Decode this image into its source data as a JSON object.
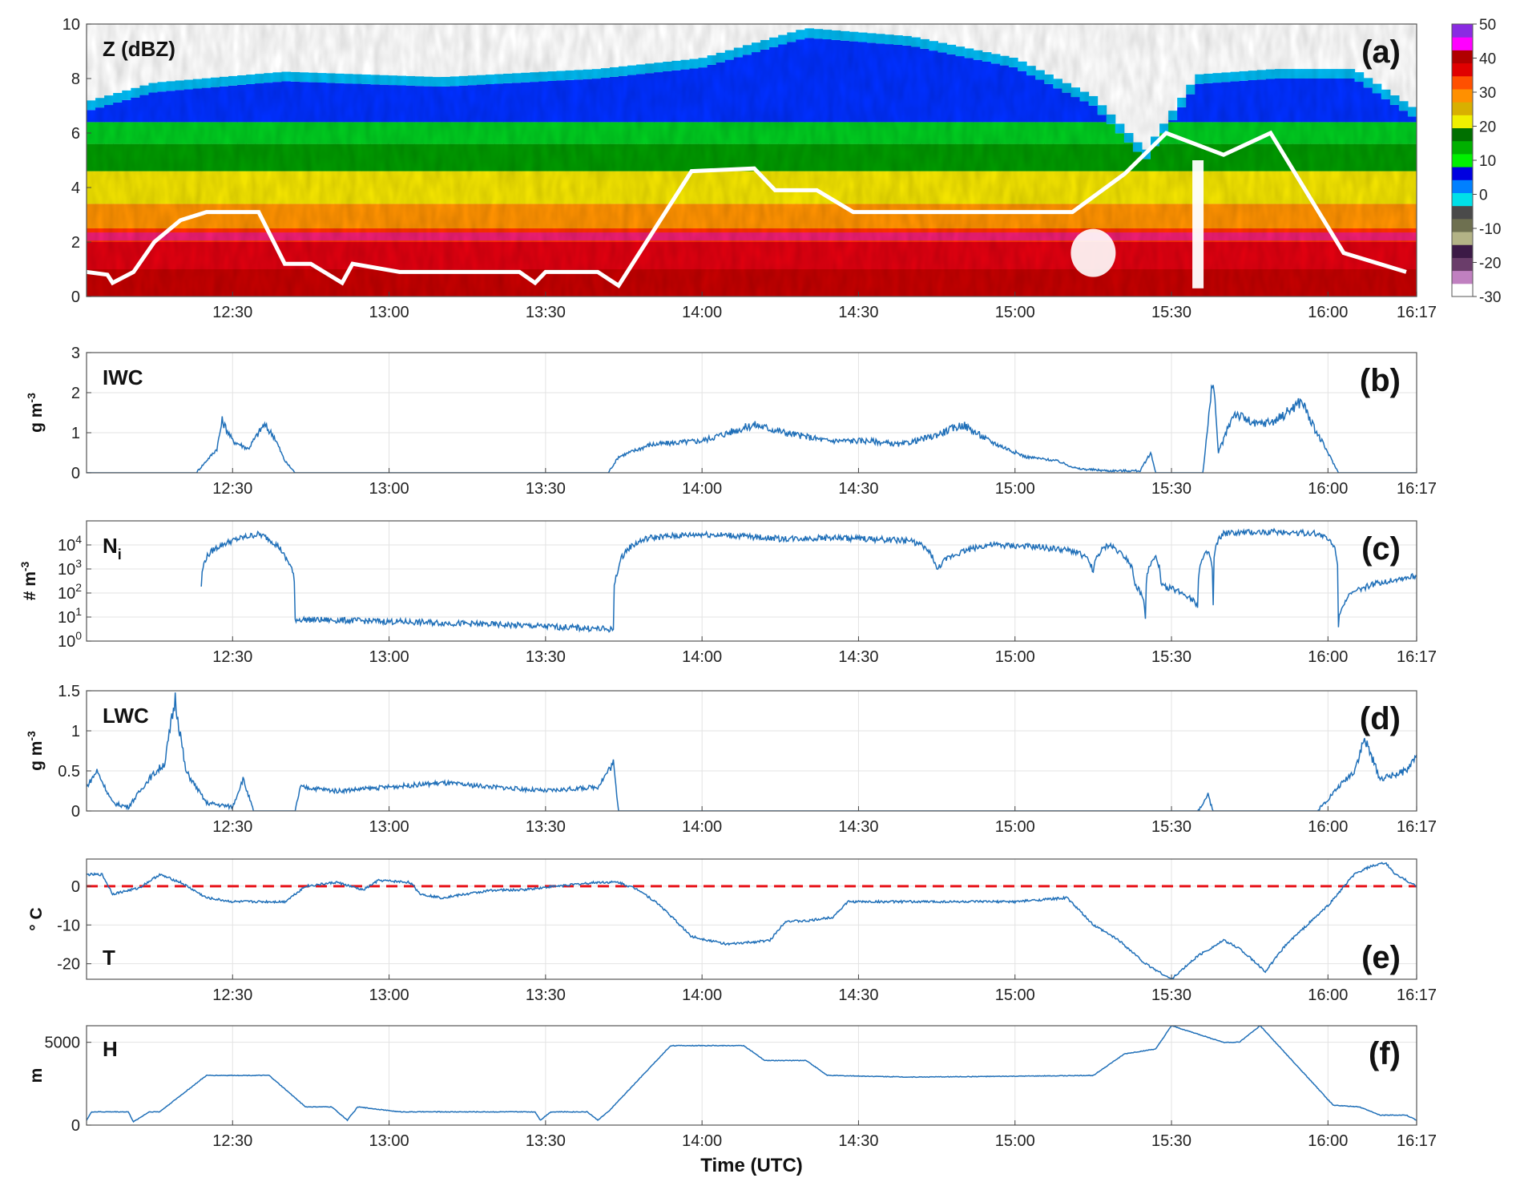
{
  "xaxis": {
    "title": "Time (UTC)",
    "start_min": 722,
    "end_min": 977,
    "tick_minutes": [
      750,
      780,
      810,
      840,
      870,
      900,
      930,
      960,
      977
    ],
    "tick_labels": [
      "12:30",
      "13:00",
      "13:30",
      "14:00",
      "14:30",
      "15:00",
      "15:30",
      "16:00",
      "16:17"
    ]
  },
  "panels": [
    {
      "id": "a",
      "letter": "(a)",
      "label": "Z (dBZ)",
      "ylabel": "",
      "type": "heatmap",
      "ylim": [
        0,
        10
      ],
      "ytick_values": [
        0,
        2,
        4,
        6,
        8,
        10
      ],
      "ytick_labels": [
        "0",
        "2",
        "4",
        "6",
        "8",
        "10"
      ],
      "colorbar": {
        "tick_values": [
          50,
          40,
          30,
          20,
          10,
          0,
          -10,
          -20,
          -30
        ],
        "tick_labels": [
          "50",
          "40",
          "30",
          "20",
          "10",
          "0",
          "-10",
          "-20",
          "-30"
        ],
        "colors": [
          "#ffffff",
          "#c080c0",
          "#6a3d6a",
          "#3c1a46",
          "#b3b386",
          "#6e7050",
          "#4a4a4a",
          "#00e0e8",
          "#0080ff",
          "#0000e0",
          "#00f000",
          "#00b000",
          "#007000",
          "#f0f000",
          "#d8b000",
          "#ff9000",
          "#ff5000",
          "#e00000",
          "#b00000",
          "#ff00ff",
          "#8a2be2"
        ]
      }
    },
    {
      "id": "b",
      "letter": "(b)",
      "label": "IWC",
      "ylabel": "g m-3",
      "type": "line",
      "ylim": [
        0,
        3
      ],
      "ytick_values": [
        0,
        1,
        2,
        3
      ],
      "ytick_labels": [
        "0",
        "1",
        "2",
        "3"
      ]
    },
    {
      "id": "c",
      "letter": "(c)",
      "label": "Ni",
      "ylabel": "# m-3",
      "type": "line",
      "scale": "log",
      "ylim": [
        1,
        100000
      ],
      "ytick_values": [
        1,
        10,
        100,
        1000,
        10000
      ],
      "ytick_labels": [
        "10^0",
        "10^1",
        "10^2",
        "10^3",
        "10^4"
      ]
    },
    {
      "id": "d",
      "letter": "(d)",
      "label": "LWC",
      "ylabel": "g m-3",
      "type": "line",
      "ylim": [
        0,
        1.5
      ],
      "ytick_values": [
        0,
        0.5,
        1,
        1.5
      ],
      "ytick_labels": [
        "0",
        "0.5",
        "1",
        "1.5"
      ]
    },
    {
      "id": "e",
      "letter": "(e)",
      "label": "T",
      "ylabel": "° C",
      "type": "line",
      "ylim": [
        -24,
        7
      ],
      "ytick_values": [
        -20,
        -10,
        0
      ],
      "ytick_labels": [
        "-20",
        "-10",
        "0"
      ],
      "reference_line": 0
    },
    {
      "id": "f",
      "letter": "(f)",
      "label": "H",
      "ylabel": "m",
      "type": "line",
      "ylim": [
        0,
        6000
      ],
      "ytick_values": [
        0,
        5000
      ],
      "ytick_labels": [
        "0",
        "5000"
      ]
    }
  ],
  "chart_data": [
    {
      "type": "heatmap",
      "panel": "a",
      "title": "Z (dBZ)",
      "x_unit": "minutes of day (UTC)",
      "y_unit": "km",
      "flight_altitude_km": [
        [
          722,
          0.9
        ],
        [
          726,
          0.8
        ],
        [
          727,
          0.5
        ],
        [
          731,
          0.9
        ],
        [
          735,
          2.0
        ],
        [
          740,
          2.8
        ],
        [
          745,
          3.1
        ],
        [
          755,
          3.1
        ],
        [
          760,
          1.2
        ],
        [
          765,
          1.2
        ],
        [
          771,
          0.5
        ],
        [
          773,
          1.2
        ],
        [
          782,
          0.9
        ],
        [
          805,
          0.9
        ],
        [
          808,
          0.5
        ],
        [
          810,
          0.9
        ],
        [
          820,
          0.9
        ],
        [
          824,
          0.4
        ],
        [
          826,
          1.0
        ],
        [
          838,
          4.6
        ],
        [
          850,
          4.7
        ],
        [
          854,
          3.9
        ],
        [
          862,
          3.9
        ],
        [
          869,
          3.1
        ],
        [
          911,
          3.1
        ],
        [
          921,
          4.5
        ],
        [
          929,
          6.0
        ],
        [
          940,
          5.2
        ],
        [
          949,
          6.0
        ],
        [
          963,
          1.6
        ],
        [
          975,
          0.9
        ]
      ],
      "echo_top_km": [
        [
          722,
          6.8
        ],
        [
          735,
          7.5
        ],
        [
          760,
          7.9
        ],
        [
          790,
          7.7
        ],
        [
          820,
          8.0
        ],
        [
          840,
          8.4
        ],
        [
          860,
          9.5
        ],
        [
          880,
          9.2
        ],
        [
          900,
          8.4
        ],
        [
          915,
          7.0
        ],
        [
          925,
          5.0
        ],
        [
          935,
          7.8
        ],
        [
          950,
          8.0
        ],
        [
          965,
          8.0
        ],
        [
          977,
          6.5
        ]
      ],
      "bright_band_km": 2.2
    },
    {
      "type": "line",
      "panel": "b",
      "name": "IWC",
      "x_unit": "minutes",
      "y_unit": "g m-3",
      "points": [
        [
          722,
          0
        ],
        [
          743,
          0
        ],
        [
          745,
          0.3
        ],
        [
          747,
          0.6
        ],
        [
          748,
          1.3
        ],
        [
          750,
          0.8
        ],
        [
          753,
          0.6
        ],
        [
          756,
          1.2
        ],
        [
          758,
          0.9
        ],
        [
          760,
          0.3
        ],
        [
          762,
          0
        ],
        [
          822,
          0
        ],
        [
          824,
          0.4
        ],
        [
          830,
          0.7
        ],
        [
          840,
          0.8
        ],
        [
          850,
          1.2
        ],
        [
          856,
          1.0
        ],
        [
          864,
          0.8
        ],
        [
          872,
          0.8
        ],
        [
          878,
          0.7
        ],
        [
          884,
          0.9
        ],
        [
          890,
          1.2
        ],
        [
          895,
          0.8
        ],
        [
          902,
          0.4
        ],
        [
          908,
          0.3
        ],
        [
          912,
          0.1
        ],
        [
          918,
          0.05
        ],
        [
          924,
          0.05
        ],
        [
          926,
          0.5
        ],
        [
          927,
          0
        ],
        [
          930,
          0
        ],
        [
          936,
          0
        ],
        [
          938,
          2.4
        ],
        [
          939,
          0.5
        ],
        [
          942,
          1.5
        ],
        [
          946,
          1.2
        ],
        [
          950,
          1.3
        ],
        [
          955,
          1.8
        ],
        [
          957,
          1.2
        ],
        [
          960,
          0.5
        ],
        [
          962,
          0
        ],
        [
          977,
          0
        ]
      ]
    },
    {
      "type": "line",
      "panel": "c",
      "name": "Ni",
      "x_unit": "minutes",
      "y_unit": "# m-3",
      "scale": "log",
      "points": [
        [
          744,
          200
        ],
        [
          745,
          3000
        ],
        [
          750,
          15000
        ],
        [
          755,
          28000
        ],
        [
          758,
          12000
        ],
        [
          760,
          3000
        ],
        [
          762,
          8
        ],
        [
          823,
          3
        ],
        [
          824,
          1000
        ],
        [
          830,
          20000
        ],
        [
          840,
          28000
        ],
        [
          845,
          25000
        ],
        [
          855,
          18000
        ],
        [
          865,
          20000
        ],
        [
          880,
          15000
        ],
        [
          885,
          800
        ],
        [
          895,
          10000
        ],
        [
          905,
          8000
        ],
        [
          912,
          5000
        ],
        [
          915,
          800
        ],
        [
          918,
          10000
        ],
        [
          920,
          5000
        ],
        [
          923,
          200
        ],
        [
          925,
          10
        ],
        [
          927,
          3000
        ],
        [
          928,
          200
        ],
        [
          935,
          30
        ],
        [
          937,
          5000
        ],
        [
          938,
          30
        ],
        [
          940,
          30000
        ],
        [
          950,
          35000
        ],
        [
          958,
          30000
        ],
        [
          961,
          10000
        ],
        [
          962,
          5
        ],
        [
          977,
          500
        ]
      ]
    },
    {
      "type": "line",
      "panel": "d",
      "name": "LWC",
      "x_unit": "minutes",
      "y_unit": "g m-3",
      "points": [
        [
          722,
          0.3
        ],
        [
          724,
          0.5
        ],
        [
          727,
          0.1
        ],
        [
          730,
          0.05
        ],
        [
          734,
          0.4
        ],
        [
          737,
          0.6
        ],
        [
          739,
          1.4
        ],
        [
          741,
          0.5
        ],
        [
          745,
          0.1
        ],
        [
          750,
          0.05
        ],
        [
          752,
          0.4
        ],
        [
          754,
          0
        ],
        [
          762,
          0
        ],
        [
          763,
          0.3
        ],
        [
          770,
          0.25
        ],
        [
          780,
          0.3
        ],
        [
          790,
          0.35
        ],
        [
          800,
          0.3
        ],
        [
          810,
          0.25
        ],
        [
          820,
          0.3
        ],
        [
          823,
          0.6
        ],
        [
          824,
          0
        ],
        [
          900,
          0
        ],
        [
          931,
          0
        ],
        [
          935,
          0
        ],
        [
          937,
          0.2
        ],
        [
          938,
          0
        ],
        [
          958,
          0
        ],
        [
          962,
          0.3
        ],
        [
          965,
          0.5
        ],
        [
          967,
          0.9
        ],
        [
          970,
          0.4
        ],
        [
          975,
          0.5
        ],
        [
          977,
          0.7
        ]
      ]
    },
    {
      "type": "line",
      "panel": "e",
      "name": "T",
      "x_unit": "minutes",
      "y_unit": "°C",
      "points": [
        [
          722,
          3
        ],
        [
          725,
          3
        ],
        [
          727,
          -2
        ],
        [
          732,
          -0.5
        ],
        [
          736,
          3
        ],
        [
          740,
          1
        ],
        [
          745,
          -3
        ],
        [
          750,
          -4
        ],
        [
          760,
          -4
        ],
        [
          764,
          0
        ],
        [
          770,
          1
        ],
        [
          775,
          -1
        ],
        [
          778,
          1.5
        ],
        [
          784,
          1
        ],
        [
          786,
          -2
        ],
        [
          790,
          -3
        ],
        [
          800,
          -1
        ],
        [
          805,
          -1
        ],
        [
          812,
          0
        ],
        [
          820,
          1
        ],
        [
          824,
          1
        ],
        [
          828,
          -1
        ],
        [
          832,
          -5
        ],
        [
          838,
          -13
        ],
        [
          845,
          -15
        ],
        [
          853,
          -14
        ],
        [
          856,
          -9
        ],
        [
          860,
          -9
        ],
        [
          865,
          -8
        ],
        [
          868,
          -4
        ],
        [
          880,
          -4
        ],
        [
          890,
          -4
        ],
        [
          900,
          -4
        ],
        [
          910,
          -3
        ],
        [
          915,
          -10
        ],
        [
          920,
          -14
        ],
        [
          925,
          -20
        ],
        [
          930,
          -24
        ],
        [
          935,
          -18
        ],
        [
          940,
          -14
        ],
        [
          943,
          -16
        ],
        [
          948,
          -22
        ],
        [
          952,
          -15
        ],
        [
          960,
          -5
        ],
        [
          965,
          3
        ],
        [
          968,
          5
        ],
        [
          971,
          6
        ],
        [
          973,
          3
        ],
        [
          977,
          0
        ]
      ],
      "reference_line": 0
    },
    {
      "type": "line",
      "panel": "f",
      "name": "H",
      "x_unit": "minutes",
      "y_unit": "m",
      "points": [
        [
          722,
          300
        ],
        [
          723,
          800
        ],
        [
          730,
          800
        ],
        [
          731,
          200
        ],
        [
          734,
          800
        ],
        [
          736,
          800
        ],
        [
          745,
          3000
        ],
        [
          757,
          3000
        ],
        [
          764,
          1100
        ],
        [
          769,
          1100
        ],
        [
          772,
          300
        ],
        [
          774,
          1100
        ],
        [
          782,
          800
        ],
        [
          800,
          800
        ],
        [
          808,
          800
        ],
        [
          809,
          300
        ],
        [
          811,
          800
        ],
        [
          818,
          800
        ],
        [
          820,
          300
        ],
        [
          822,
          800
        ],
        [
          834,
          4800
        ],
        [
          848,
          4800
        ],
        [
          852,
          3900
        ],
        [
          860,
          3900
        ],
        [
          864,
          3000
        ],
        [
          880,
          2900
        ],
        [
          900,
          2950
        ],
        [
          915,
          3000
        ],
        [
          921,
          4300
        ],
        [
          927,
          4600
        ],
        [
          930,
          6000
        ],
        [
          940,
          5000
        ],
        [
          943,
          5000
        ],
        [
          947,
          6000
        ],
        [
          961,
          1200
        ],
        [
          966,
          1100
        ],
        [
          970,
          600
        ],
        [
          975,
          600
        ],
        [
          977,
          300
        ]
      ]
    }
  ]
}
